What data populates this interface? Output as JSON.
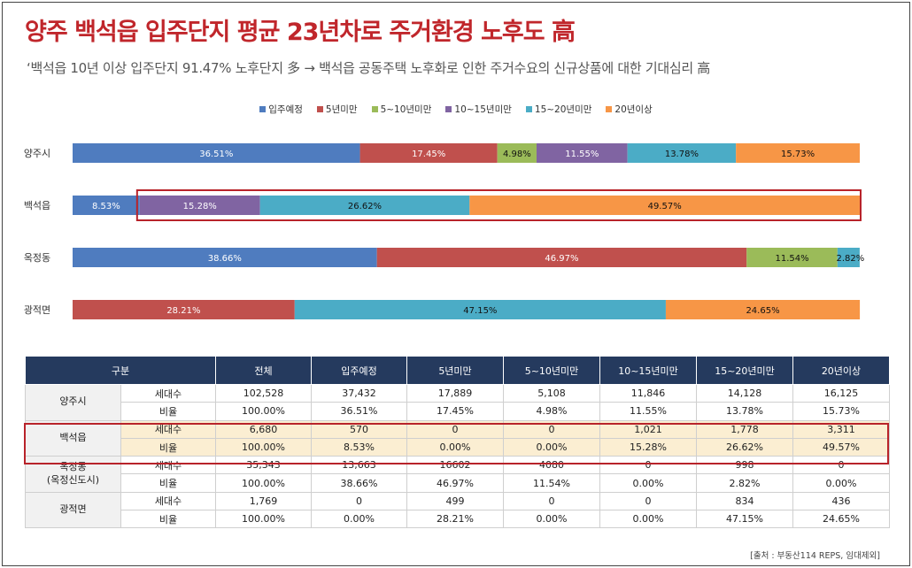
{
  "header": {
    "title": "양주 백석읍 입주단지 평균 23년차로 주거환경 노후도 高",
    "subtitle": "‘백석읍 10년 이상 입주단지 91.47% 노후단지 多  → 백석읍 공동주택 노후화로 인한 주거수요의 신규상품에 대한 기대심리 高"
  },
  "colors": [
    "#4f7cbf",
    "#c0504d",
    "#9bbb59",
    "#8064a2",
    "#4bacc6",
    "#f79646"
  ],
  "chart_data": {
    "type": "bar",
    "stacked": true,
    "orientation": "horizontal",
    "normalized": true,
    "categories": [
      "양주시",
      "백석읍",
      "옥정동",
      "광적면"
    ],
    "series": [
      {
        "name": "입주예정",
        "values": [
          36.51,
          8.53,
          38.66,
          0
        ]
      },
      {
        "name": "5년미만",
        "values": [
          17.45,
          0,
          46.97,
          28.21
        ]
      },
      {
        "name": "5~10년미만",
        "values": [
          4.98,
          0,
          11.54,
          0
        ]
      },
      {
        "name": "10~15년미만",
        "values": [
          11.55,
          15.28,
          0,
          0
        ]
      },
      {
        "name": "15~20년미만",
        "values": [
          13.78,
          26.62,
          2.82,
          47.15
        ]
      },
      {
        "name": "20년이상",
        "values": [
          15.73,
          49.57,
          0,
          24.65
        ]
      }
    ],
    "labels": [
      [
        "36.51%",
        "17.45%",
        "4.98%",
        "11.55%",
        "13.78%",
        "15.73%"
      ],
      [
        "8.53%",
        "",
        "",
        "15.28%",
        "26.62%",
        "49.57%"
      ],
      [
        "38.66%",
        "46.97%",
        "11.54%",
        "",
        "2.82%",
        ""
      ],
      [
        "",
        "28.21%",
        "",
        "",
        "47.15%",
        "24.65%"
      ]
    ],
    "highlight_category": "백석읍",
    "legend": "top-center",
    "grid": false
  },
  "table": {
    "headers": [
      "구분",
      "전체",
      "입주예정",
      "5년미만",
      "5~10년미만",
      "10~15년미만",
      "15~20년미만",
      "20년이상"
    ],
    "groups": [
      {
        "name": "양주시",
        "rows": [
          {
            "label": "세대수",
            "values": [
              "102,528",
              "37,432",
              "17,889",
              "5,108",
              "11,846",
              "14,128",
              "16,125"
            ]
          },
          {
            "label": "비율",
            "values": [
              "100.00%",
              "36.51%",
              "17.45%",
              "4.98%",
              "11.55%",
              "13.78%",
              "15.73%"
            ]
          }
        ]
      },
      {
        "name": "백석읍",
        "rows": [
          {
            "label": "세대수",
            "values": [
              "6,680",
              "570",
              "0",
              "0",
              "1,021",
              "1,778",
              "3,311"
            ]
          },
          {
            "label": "비율",
            "values": [
              "100.00%",
              "8.53%",
              "0.00%",
              "0.00%",
              "15.28%",
              "26.62%",
              "49.57%"
            ]
          }
        ]
      },
      {
        "name": "옥정동\n(옥정신도시)",
        "rows": [
          {
            "label": "세대수",
            "values": [
              "35,343",
              "13,663",
              "16602",
              "4080",
              "0",
              "998",
              "0"
            ]
          },
          {
            "label": "비율",
            "values": [
              "100.00%",
              "38.66%",
              "46.97%",
              "11.54%",
              "0.00%",
              "2.82%",
              "0.00%"
            ]
          }
        ]
      },
      {
        "name": "광적면",
        "rows": [
          {
            "label": "세대수",
            "values": [
              "1,769",
              "0",
              "499",
              "0",
              "0",
              "834",
              "436"
            ]
          },
          {
            "label": "비율",
            "values": [
              "100.00%",
              "0.00%",
              "28.21%",
              "0.00%",
              "0.00%",
              "47.15%",
              "24.65%"
            ]
          }
        ]
      }
    ]
  },
  "source": "[출처 : 부동산114 REPS, 임대제외]"
}
